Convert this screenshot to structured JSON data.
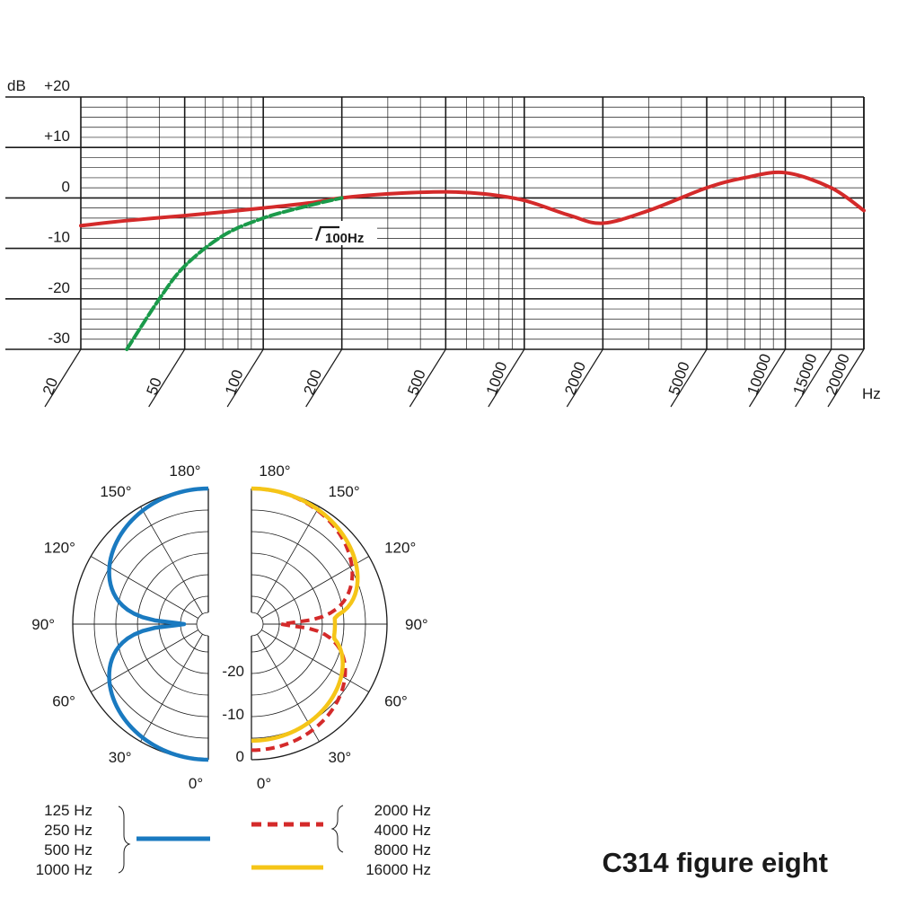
{
  "title": "C314 figure eight",
  "chart_data": [
    {
      "type": "line",
      "title": "",
      "xlabel": "Hz",
      "ylabel": "dB",
      "x_scale": "log",
      "xlim": [
        20,
        20000
      ],
      "ylim": [
        -30,
        20
      ],
      "x_ticks": [
        "20",
        "50",
        "100",
        "200",
        "500",
        "1000",
        "2000",
        "5000",
        "10000",
        "15000",
        "20000"
      ],
      "y_ticks": [
        "+20",
        "+10",
        "0",
        "-10",
        "-20",
        "-30"
      ],
      "grid": true,
      "annotation": "100Hz",
      "series": [
        {
          "color": "#d42a2a",
          "x": [
            20,
            30,
            50,
            70,
            100,
            150,
            200,
            300,
            500,
            700,
            1000,
            1500,
            2000,
            3000,
            5000,
            7000,
            10000,
            15000,
            20000
          ],
          "y": [
            -5.5,
            -4.5,
            -3.5,
            -2.8,
            -2,
            -1,
            0,
            0.8,
            1.2,
            0.8,
            -0.5,
            -3.5,
            -5,
            -2.5,
            2,
            4,
            5,
            2,
            -2.5
          ]
        },
        {
          "color": "#1a9a4a",
          "style": "dashed",
          "x": [
            30,
            40,
            50,
            70,
            100,
            150,
            200
          ],
          "y": [
            -30,
            -20,
            -13.5,
            -7.5,
            -4,
            -1.5,
            0
          ]
        }
      ]
    },
    {
      "type": "polar",
      "title": "",
      "radial_labels": [
        "-20",
        "-10",
        "0"
      ],
      "angle_labels": [
        "0°",
        "30°",
        "60°",
        "90°",
        "120°",
        "150°",
        "180°"
      ],
      "left_angle_labels": [
        "180°",
        "150°",
        "120°",
        "90°",
        "60°",
        "30°",
        "0°"
      ],
      "right_angle_labels": [
        "180°",
        "150°",
        "120°",
        "90°",
        "60°",
        "30°",
        "0°"
      ],
      "legend": [
        {
          "labels": [
            "125 Hz",
            "250 Hz",
            "500 Hz",
            "1000 Hz"
          ],
          "color": "#1a7ac0",
          "style": "solid"
        },
        {
          "labels": [
            "2000 Hz",
            "4000 Hz",
            "8000 Hz"
          ],
          "color": "#d42a2a",
          "style": "dashed"
        },
        {
          "labels": [
            "16000 Hz"
          ],
          "color": "#f5c518",
          "style": "solid"
        }
      ]
    }
  ]
}
